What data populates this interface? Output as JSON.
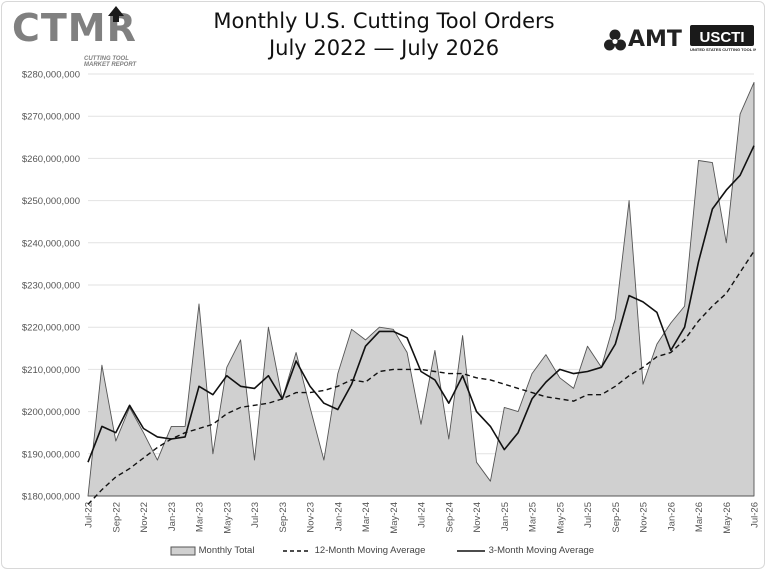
{
  "header": {
    "title_line1": "Monthly U.S. Cutting Tool Orders",
    "title_line2": "July 2022 — July 2026",
    "logo_ctmr": "CTMR",
    "logo_ctmr_sub": "CUTTING TOOL MARKET REPORT",
    "logo_amt": "AMT",
    "logo_usc": "USCTI",
    "logo_usc_sub": "UNITED STATES CUTTING TOOL INSTITUTE"
  },
  "colors": {
    "area_fill": "#d0d0d0",
    "area_stroke": "#555555",
    "line": "#111111",
    "grid": "#e2e2e2"
  },
  "legend": {
    "monthly": "Monthly Total",
    "ma12": "12-Month Moving Average",
    "ma3": "3-Month Moving Average"
  },
  "chart_data": {
    "type": "area",
    "ylim": [
      180000000,
      280000000
    ],
    "y_ticks": [
      180000000,
      190000000,
      200000000,
      210000000,
      220000000,
      230000000,
      240000000,
      250000000,
      260000000,
      270000000,
      280000000
    ],
    "y_tick_labels": [
      "$180,000,000",
      "$190,000,000",
      "$200,000,000",
      "$210,000,000",
      "$220,000,000",
      "$230,000,000",
      "$240,000,000",
      "$250,000,000",
      "$260,000,000",
      "$270,000,000",
      "$280,000,000"
    ],
    "x": [
      "Jul-22",
      "Aug-22",
      "Sep-22",
      "Oct-22",
      "Nov-22",
      "Dec-22",
      "Jan-23",
      "Feb-23",
      "Mar-23",
      "Apr-23",
      "May-23",
      "Jun-23",
      "Jul-23",
      "Aug-23",
      "Sep-23",
      "Oct-23",
      "Nov-23",
      "Dec-23",
      "Jan-24",
      "Feb-24",
      "Mar-24",
      "Apr-24",
      "May-24",
      "Jun-24",
      "Jul-24",
      "Aug-24",
      "Sep-24",
      "Oct-24",
      "Nov-24",
      "Dec-24",
      "Jan-25",
      "Feb-25",
      "Mar-25",
      "Apr-25",
      "May-25",
      "Jun-25",
      "Jul-25",
      "Aug-25",
      "Sep-25",
      "Oct-25",
      "Nov-25",
      "Dec-25",
      "Jan-26",
      "Feb-26",
      "Mar-26",
      "Apr-26",
      "May-26",
      "Jun-26",
      "Jul-26"
    ],
    "x_tick_labels_every": 2,
    "grid": "horizontal",
    "legend_position": "bottom",
    "series": [
      {
        "name": "Monthly Total",
        "style": "area",
        "values": [
          180000000,
          211000000,
          193000000,
          201000000,
          195000000,
          188500000,
          196500000,
          196500000,
          225500000,
          190000000,
          210500000,
          217000000,
          188500000,
          220000000,
          203000000,
          214000000,
          201000000,
          188500000,
          209000000,
          219500000,
          217000000,
          220000000,
          219500000,
          214000000,
          197000000,
          214500000,
          193500000,
          218000000,
          188000000,
          183500000,
          201000000,
          200000000,
          209000000,
          213500000,
          208000000,
          205500000,
          215500000,
          210500000,
          222000000,
          250000000,
          206500000,
          216000000,
          221000000,
          225000000,
          259500000,
          259000000,
          240000000,
          270500000,
          278000000
        ]
      },
      {
        "name": "12-Month Moving Average",
        "style": "dashed",
        "values": [
          178000000,
          181500000,
          184500000,
          186500000,
          189000000,
          191500000,
          193500000,
          195000000,
          196000000,
          197000000,
          199500000,
          201000000,
          201500000,
          202000000,
          203000000,
          204500000,
          204500000,
          205000000,
          206000000,
          207500000,
          207000000,
          209500000,
          210000000,
          210000000,
          210000000,
          209500000,
          209000000,
          209000000,
          208000000,
          207500000,
          206500000,
          205500000,
          204500000,
          203500000,
          203000000,
          202500000,
          204000000,
          204000000,
          206000000,
          208500000,
          210500000,
          213000000,
          214000000,
          217000000,
          221500000,
          225000000,
          228000000,
          233000000,
          238000000
        ]
      },
      {
        "name": "3-Month Moving Average",
        "style": "solid",
        "values": [
          188000000,
          196500000,
          195000000,
          201500000,
          196000000,
          194000000,
          193500000,
          194000000,
          206000000,
          204000000,
          208500000,
          206000000,
          205500000,
          208500000,
          203000000,
          212000000,
          206000000,
          202000000,
          200500000,
          206500000,
          215500000,
          219000000,
          219000000,
          217500000,
          209500000,
          207500000,
          202000000,
          208500000,
          200000000,
          196500000,
          191000000,
          195000000,
          203000000,
          207000000,
          210000000,
          209000000,
          209500000,
          210500000,
          216000000,
          227500000,
          226000000,
          223500000,
          214500000,
          220000000,
          235500000,
          248000000,
          252500000,
          256000000,
          263000000
        ]
      }
    ]
  }
}
